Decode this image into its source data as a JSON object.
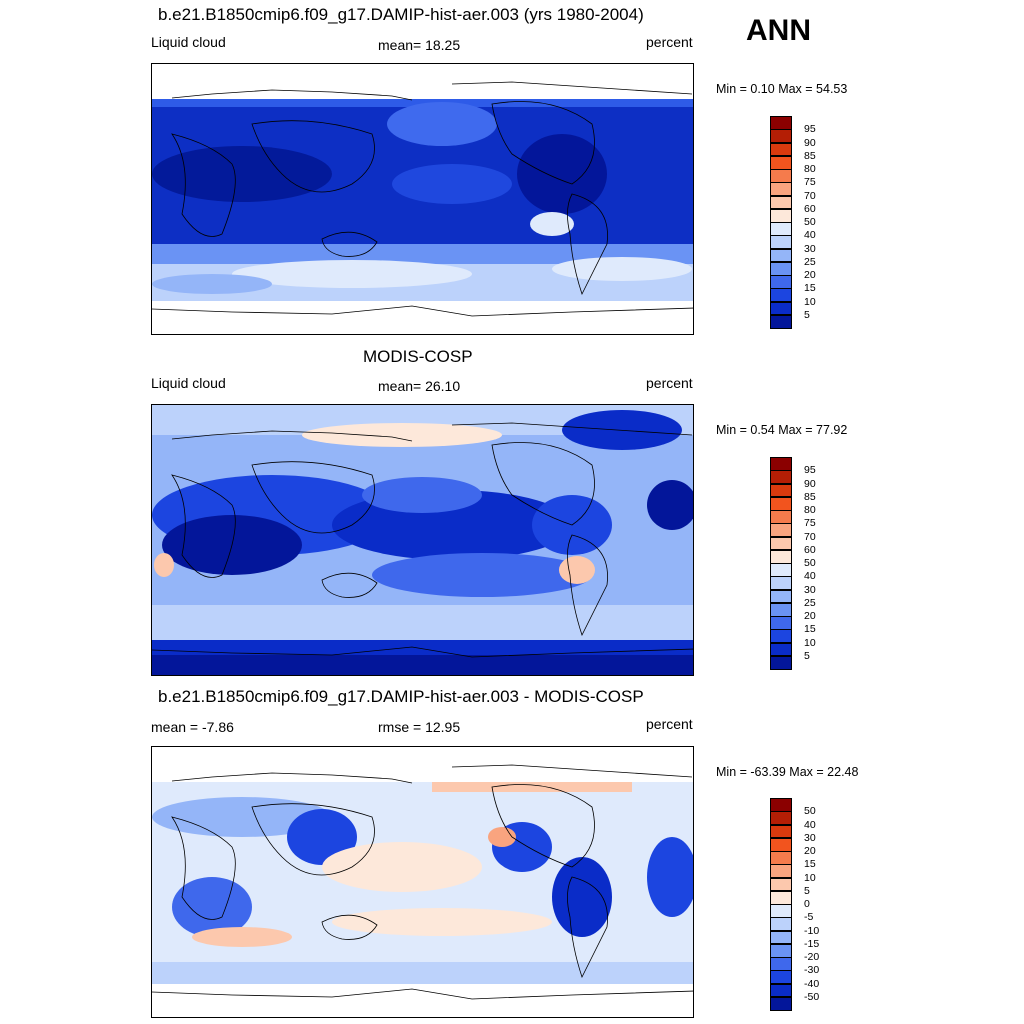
{
  "season": "ANN",
  "panels": [
    {
      "id": "model",
      "title": "b.e21.B1850cmip6.f09_g17.DAMIP-hist-aer.003 (yrs 1980-2004)",
      "left_label": "Liquid cloud",
      "center_label": "mean=  18.25",
      "right_label": "percent",
      "minmax": "Min =   0.10 Max =  54.53",
      "colorbar_labels": [
        "95",
        "90",
        "85",
        "80",
        "75",
        "70",
        "60",
        "50",
        "40",
        "30",
        "25",
        "20",
        "15",
        "10",
        "5"
      ]
    },
    {
      "id": "obs",
      "title": "MODIS-COSP",
      "left_label": "Liquid cloud",
      "center_label": "mean=  26.10",
      "right_label": "percent",
      "minmax": "Min =   0.54 Max =  77.92",
      "colorbar_labels": [
        "95",
        "90",
        "85",
        "80",
        "75",
        "70",
        "60",
        "50",
        "40",
        "30",
        "25",
        "20",
        "15",
        "10",
        "5"
      ]
    },
    {
      "id": "diff",
      "title": "b.e21.B1850cmip6.f09_g17.DAMIP-hist-aer.003 - MODIS-COSP",
      "left_label": "mean =  -7.86",
      "center_label": "rmse =  12.95",
      "right_label": "percent",
      "minmax": "Min = -63.39 Max =  22.48",
      "colorbar_labels": [
        "50",
        "40",
        "30",
        "20",
        "15",
        "10",
        "5",
        "0",
        "-5",
        "-10",
        "-15",
        "-20",
        "-30",
        "-40",
        "-50"
      ]
    }
  ],
  "colorbar_colors": [
    "#8b0000",
    "#b41e05",
    "#d93a0e",
    "#f2541e",
    "#f57b4c",
    "#f9a47f",
    "#fcc8ad",
    "#fde8da",
    "#dfeafc",
    "#bcd2fb",
    "#94b5f8",
    "#6a93f4",
    "#3f68ec",
    "#1c45e0",
    "#0a2cc8",
    "#03169a"
  ]
}
